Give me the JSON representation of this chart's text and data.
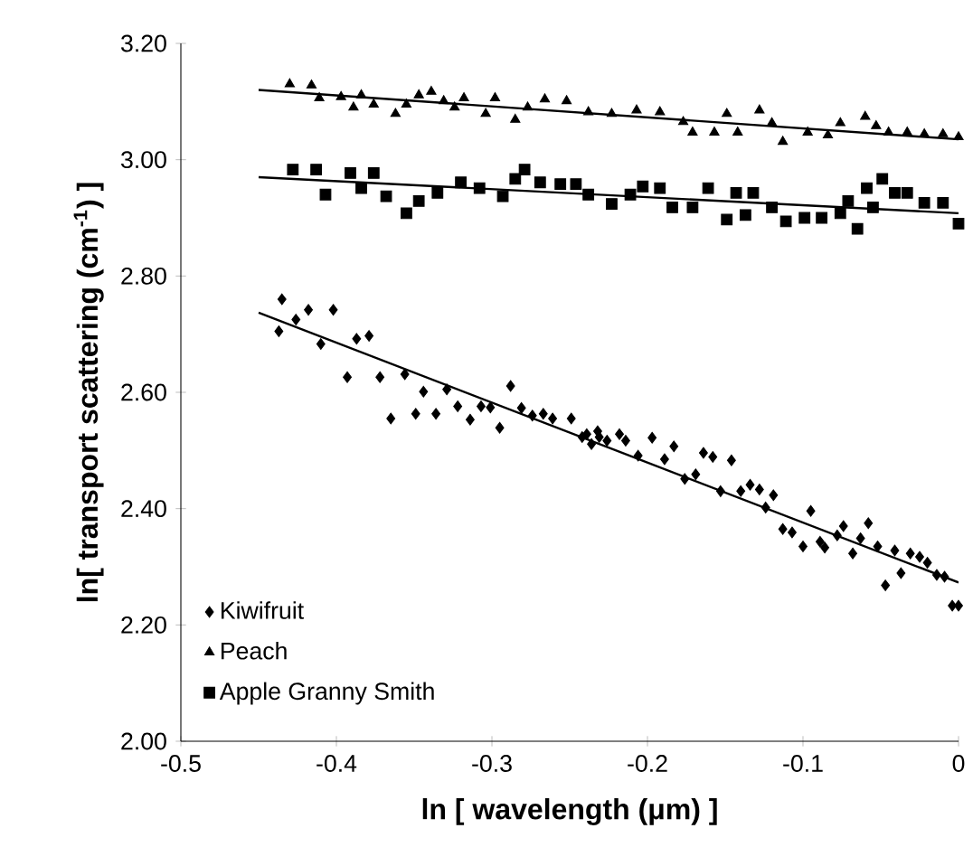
{
  "chart_data": {
    "type": "scatter",
    "xlabel": "ln [ wavelength (μm) ]",
    "ylabel": "ln[ transport scattering (cm$^{-1}$) ]",
    "xlim": [
      -0.5,
      0
    ],
    "ylim": [
      2.0,
      3.2
    ],
    "xticks": [
      -0.5,
      -0.4,
      -0.3,
      -0.2,
      -0.1,
      0
    ],
    "yticks": [
      {
        "value": 2.0,
        "label": "2.00"
      },
      {
        "value": 2.2,
        "label": "2.20"
      },
      {
        "value": 2.4,
        "label": "2.40"
      },
      {
        "value": 2.6,
        "label": "2.60"
      },
      {
        "value": 2.8,
        "label": "2.80"
      },
      {
        "value": 3.0,
        "label": "3.00"
      },
      {
        "value": 3.2,
        "label": "3.20"
      }
    ],
    "legend": "bottom left",
    "series": [
      {
        "name": "Kiwifruit",
        "color": "#000000",
        "marker": "diamond",
        "x": [
          -0.437,
          -0.435,
          -0.426,
          -0.418,
          -0.41,
          -0.402,
          -0.393,
          -0.387,
          -0.379,
          -0.372,
          -0.365,
          -0.356,
          -0.349,
          -0.344,
          -0.336,
          -0.329,
          -0.322,
          -0.314,
          -0.307,
          -0.301,
          -0.295,
          -0.288,
          -0.281,
          -0.274,
          -0.267,
          -0.261,
          -0.249,
          -0.242,
          -0.239,
          -0.236,
          -0.232,
          -0.231,
          -0.226,
          -0.218,
          -0.214,
          -0.206,
          -0.197,
          -0.189,
          -0.183,
          -0.176,
          -0.169,
          -0.164,
          -0.158,
          -0.153,
          -0.146,
          -0.14,
          -0.134,
          -0.128,
          -0.124,
          -0.119,
          -0.113,
          -0.107,
          -0.1,
          -0.095,
          -0.089,
          -0.086,
          -0.078,
          -0.074,
          -0.068,
          -0.063,
          -0.058,
          -0.052,
          -0.047,
          -0.041,
          -0.037,
          -0.031,
          -0.025,
          -0.02,
          -0.014,
          -0.009,
          -0.004,
          0.0
        ],
        "values": [
          2.705,
          2.76,
          2.725,
          2.742,
          2.683,
          2.742,
          2.626,
          2.692,
          2.697,
          2.626,
          2.555,
          2.631,
          2.563,
          2.601,
          2.563,
          2.605,
          2.576,
          2.553,
          2.576,
          2.574,
          2.539,
          2.611,
          2.573,
          2.56,
          2.563,
          2.555,
          2.555,
          2.523,
          2.528,
          2.511,
          2.533,
          2.523,
          2.517,
          2.528,
          2.517,
          2.491,
          2.522,
          2.485,
          2.507,
          2.451,
          2.459,
          2.496,
          2.489,
          2.43,
          2.483,
          2.43,
          2.441,
          2.433,
          2.402,
          2.423,
          2.365,
          2.359,
          2.335,
          2.396,
          2.343,
          2.333,
          2.354,
          2.37,
          2.323,
          2.349,
          2.375,
          2.335,
          2.268,
          2.328,
          2.289,
          2.323,
          2.317,
          2.307,
          2.286,
          2.283,
          2.233,
          2.233
        ]
      },
      {
        "name": "Peach",
        "color": "#000000",
        "marker": "triangle",
        "x": [
          -0.43,
          -0.416,
          -0.411,
          -0.397,
          -0.389,
          -0.384,
          -0.376,
          -0.362,
          -0.355,
          -0.347,
          -0.339,
          -0.331,
          -0.324,
          -0.318,
          -0.304,
          -0.298,
          -0.285,
          -0.277,
          -0.266,
          -0.252,
          -0.238,
          -0.223,
          -0.207,
          -0.192,
          -0.177,
          -0.171,
          -0.157,
          -0.149,
          -0.142,
          -0.128,
          -0.12,
          -0.113,
          -0.097,
          -0.084,
          -0.076,
          -0.06,
          -0.053,
          -0.045,
          -0.033,
          -0.022,
          -0.01,
          0.0
        ],
        "values": [
          3.13,
          3.128,
          3.106,
          3.108,
          3.09,
          3.111,
          3.095,
          3.079,
          3.095,
          3.111,
          3.117,
          3.101,
          3.09,
          3.106,
          3.079,
          3.106,
          3.069,
          3.09,
          3.104,
          3.101,
          3.082,
          3.079,
          3.085,
          3.082,
          3.065,
          3.047,
          3.047,
          3.079,
          3.047,
          3.085,
          3.063,
          3.031,
          3.047,
          3.042,
          3.063,
          3.074,
          3.058,
          3.047,
          3.047,
          3.044,
          3.044,
          3.039
        ]
      },
      {
        "name": "Apple Granny Smith",
        "color": "#000000",
        "marker": "square",
        "x": [
          -0.428,
          -0.413,
          -0.407,
          -0.391,
          -0.384,
          -0.376,
          -0.368,
          -0.355,
          -0.347,
          -0.335,
          -0.32,
          -0.308,
          -0.293,
          -0.285,
          -0.279,
          -0.269,
          -0.256,
          -0.246,
          -0.238,
          -0.223,
          -0.211,
          -0.203,
          -0.192,
          -0.184,
          -0.171,
          -0.161,
          -0.149,
          -0.143,
          -0.137,
          -0.132,
          -0.12,
          -0.111,
          -0.099,
          -0.088,
          -0.076,
          -0.071,
          -0.065,
          -0.059,
          -0.055,
          -0.049,
          -0.041,
          -0.033,
          -0.022,
          -0.01,
          0.0
        ],
        "values": [
          2.983,
          2.983,
          2.94,
          2.977,
          2.951,
          2.977,
          2.937,
          2.908,
          2.929,
          2.943,
          2.961,
          2.951,
          2.937,
          2.967,
          2.983,
          2.961,
          2.958,
          2.958,
          2.94,
          2.924,
          2.94,
          2.954,
          2.951,
          2.918,
          2.918,
          2.951,
          2.897,
          2.943,
          2.905,
          2.943,
          2.918,
          2.894,
          2.9,
          2.9,
          2.908,
          2.929,
          2.881,
          2.951,
          2.918,
          2.967,
          2.943,
          2.943,
          2.926,
          2.926,
          2.89
        ]
      },
      {
        "type": "line",
        "color": "#000000",
        "x": [
          -0.45,
          0
        ],
        "values": [
          2.737,
          2.273
        ]
      },
      {
        "type": "line",
        "color": "#000000",
        "x": [
          -0.45,
          0
        ],
        "values": [
          3.12,
          3.035
        ]
      },
      {
        "type": "line",
        "color": "#000000",
        "x": [
          -0.45,
          0
        ],
        "values": [
          2.97,
          2.908
        ]
      }
    ]
  }
}
